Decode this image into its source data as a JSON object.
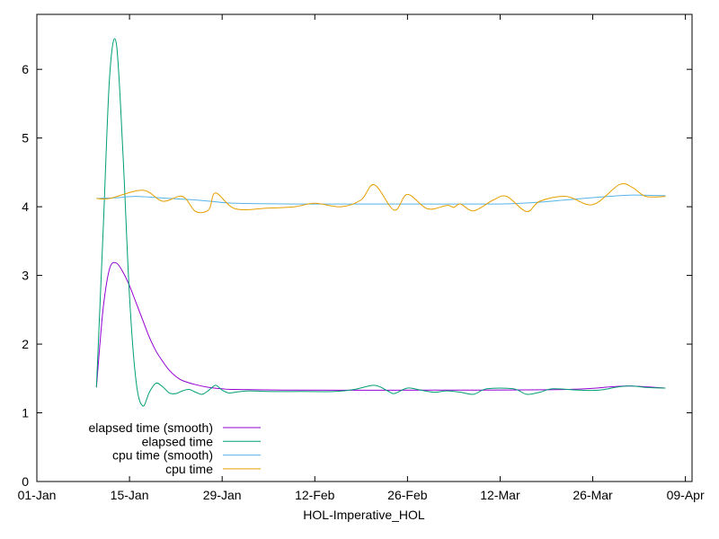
{
  "chart_data": {
    "type": "line",
    "title": "",
    "xlabel": "HOL-Imperative_HOL",
    "ylabel": "",
    "xlim": [
      "01-Jan",
      "10-Apr"
    ],
    "ylim": [
      0,
      6.8
    ],
    "x_ticks": [
      "01-Jan",
      "15-Jan",
      "29-Jan",
      "12-Feb",
      "26-Feb",
      "12-Mar",
      "26-Mar",
      "09-Apr"
    ],
    "y_ticks": [
      0,
      1,
      2,
      3,
      4,
      5,
      6
    ],
    "grid": false,
    "legend_position": "bottom-left",
    "series": [
      {
        "name": "elapsed time (smooth)",
        "color": "#9400d3",
        "points": [
          [
            "10-Jan",
            1.37
          ],
          [
            "11-Jan",
            2.5
          ],
          [
            "12-Jan",
            3.1
          ],
          [
            "13-Jan",
            3.18
          ],
          [
            "14-Jan",
            3.05
          ],
          [
            "15-Jan",
            2.85
          ],
          [
            "16-Jan",
            2.6
          ],
          [
            "17-Jan",
            2.35
          ],
          [
            "18-Jan",
            2.1
          ],
          [
            "19-Jan",
            1.9
          ],
          [
            "20-Jan",
            1.75
          ],
          [
            "21-Jan",
            1.62
          ],
          [
            "22-Jan",
            1.53
          ],
          [
            "23-Jan",
            1.47
          ],
          [
            "25-Jan",
            1.41
          ],
          [
            "27-Jan",
            1.37
          ],
          [
            "29-Jan",
            1.35
          ],
          [
            "31-Jan",
            1.34
          ],
          [
            "10-Feb",
            1.33
          ],
          [
            "02-Mar",
            1.33
          ],
          [
            "22-Mar",
            1.34
          ],
          [
            "29-Mar",
            1.38
          ],
          [
            "01-Apr",
            1.39
          ],
          [
            "06-Apr",
            1.36
          ]
        ]
      },
      {
        "name": "elapsed time",
        "color": "#009e73",
        "points": [
          [
            "10-Jan",
            1.37
          ],
          [
            "11-Jan",
            3.6
          ],
          [
            "12-Jan",
            5.9
          ],
          [
            "13-Jan",
            6.38
          ],
          [
            "14-Jan",
            4.8
          ],
          [
            "15-Jan",
            2.7
          ],
          [
            "16-Jan",
            1.45
          ],
          [
            "17-Jan",
            1.1
          ],
          [
            "18-Jan",
            1.3
          ],
          [
            "19-Jan",
            1.43
          ],
          [
            "20-Jan",
            1.38
          ],
          [
            "21-Jan",
            1.29
          ],
          [
            "22-Jan",
            1.28
          ],
          [
            "23-Jan",
            1.32
          ],
          [
            "24-Jan",
            1.34
          ],
          [
            "25-Jan",
            1.3
          ],
          [
            "26-Jan",
            1.27
          ],
          [
            "27-Jan",
            1.33
          ],
          [
            "28-Jan",
            1.4
          ],
          [
            "29-Jan",
            1.33
          ],
          [
            "30-Jan",
            1.29
          ],
          [
            "31-Jan",
            1.3
          ],
          [
            "02-Feb",
            1.32
          ],
          [
            "05-Feb",
            1.31
          ],
          [
            "10-Feb",
            1.31
          ],
          [
            "15-Feb",
            1.31
          ],
          [
            "18-Feb",
            1.34
          ],
          [
            "21-Feb",
            1.4
          ],
          [
            "23-Feb",
            1.32
          ],
          [
            "24-Feb",
            1.28
          ],
          [
            "26-Feb",
            1.36
          ],
          [
            "28-Feb",
            1.33
          ],
          [
            "02-Mar",
            1.3
          ],
          [
            "04-Mar",
            1.32
          ],
          [
            "06-Mar",
            1.3
          ],
          [
            "08-Mar",
            1.27
          ],
          [
            "10-Mar",
            1.35
          ],
          [
            "14-Mar",
            1.35
          ],
          [
            "16-Mar",
            1.27
          ],
          [
            "18-Mar",
            1.3
          ],
          [
            "20-Mar",
            1.35
          ],
          [
            "24-Mar",
            1.33
          ],
          [
            "27-Mar",
            1.33
          ],
          [
            "30-Mar",
            1.38
          ],
          [
            "01-Apr",
            1.39
          ],
          [
            "03-Apr",
            1.37
          ],
          [
            "06-Apr",
            1.36
          ]
        ]
      },
      {
        "name": "cpu time (smooth)",
        "color": "#56b4e9",
        "points": [
          [
            "10-Jan",
            4.12
          ],
          [
            "13-Jan",
            4.13
          ],
          [
            "16-Jan",
            4.15
          ],
          [
            "21-Jan",
            4.12
          ],
          [
            "26-Jan",
            4.09
          ],
          [
            "31-Jan",
            4.05
          ],
          [
            "10-Feb",
            4.04
          ],
          [
            "20-Feb",
            4.04
          ],
          [
            "02-Mar",
            4.04
          ],
          [
            "12-Mar",
            4.04
          ],
          [
            "17-Mar",
            4.06
          ],
          [
            "22-Mar",
            4.1
          ],
          [
            "27-Mar",
            4.14
          ],
          [
            "01-Apr",
            4.17
          ],
          [
            "06-Apr",
            4.16
          ]
        ]
      },
      {
        "name": "cpu time",
        "color": "#e69f00",
        "points": [
          [
            "10-Jan",
            4.12
          ],
          [
            "12-Jan",
            4.12
          ],
          [
            "17-Jan",
            4.24
          ],
          [
            "20-Jan",
            4.08
          ],
          [
            "23-Jan",
            4.15
          ],
          [
            "25-Jan",
            3.93
          ],
          [
            "27-Jan",
            3.96
          ],
          [
            "28-Jan",
            4.2
          ],
          [
            "31-Jan",
            3.97
          ],
          [
            "05-Feb",
            3.98
          ],
          [
            "09-Feb",
            4.0
          ],
          [
            "12-Feb",
            4.05
          ],
          [
            "16-Feb",
            4.0
          ],
          [
            "19-Feb",
            4.1
          ],
          [
            "21-Feb",
            4.32
          ],
          [
            "24-Feb",
            3.95
          ],
          [
            "26-Feb",
            4.18
          ],
          [
            "01-Mar",
            3.97
          ],
          [
            "04-Mar",
            4.02
          ],
          [
            "05-Mar",
            3.99
          ],
          [
            "06-Mar",
            4.04
          ],
          [
            "08-Mar",
            3.94
          ],
          [
            "11-Mar",
            4.1
          ],
          [
            "13-Mar",
            4.15
          ],
          [
            "16-Mar",
            3.93
          ],
          [
            "18-Mar",
            4.08
          ],
          [
            "22-Mar",
            4.15
          ],
          [
            "26-Mar",
            4.03
          ],
          [
            "30-Mar",
            4.32
          ],
          [
            "01-Apr",
            4.28
          ],
          [
            "03-Apr",
            4.15
          ],
          [
            "06-Apr",
            4.15
          ]
        ]
      }
    ]
  }
}
